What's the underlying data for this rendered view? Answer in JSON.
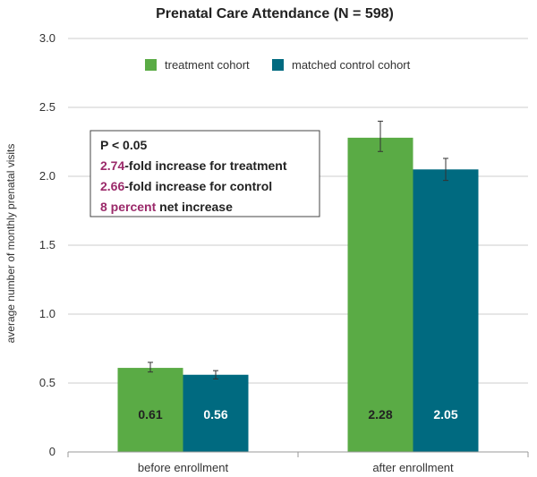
{
  "chart_data": {
    "type": "bar",
    "title": "Prenatal Care Attendance (N = 598)",
    "xlabel": "",
    "ylabel": "average number of monthly prenatal visits",
    "ylim": [
      0,
      3.0
    ],
    "yticks": [
      "0",
      "0.5",
      "1.0",
      "1.5",
      "2.0",
      "2.5",
      "3.0"
    ],
    "ytick_values": [
      0,
      0.5,
      1.0,
      1.5,
      2.0,
      2.5,
      3.0
    ],
    "grid": true,
    "legend": "top-center",
    "categories": [
      "before enrollment",
      "after enrollment"
    ],
    "series": [
      {
        "name": "treatment cohort",
        "color": "#5aab45",
        "values": [
          0.61,
          2.28
        ],
        "labels": [
          "0.61",
          "2.28"
        ],
        "label_color": "#222222",
        "error": [
          [
            0.58,
            0.65
          ],
          [
            2.18,
            2.4
          ]
        ]
      },
      {
        "name": "matched control cohort",
        "color": "#006a80",
        "values": [
          0.56,
          2.05
        ],
        "labels": [
          "0.56",
          "2.05"
        ],
        "label_color": "#ffffff",
        "error": [
          [
            0.53,
            0.59
          ],
          [
            1.97,
            2.13
          ]
        ]
      }
    ],
    "annotation": {
      "lines": [
        [
          {
            "text": "P < 0.05",
            "highlight": false
          }
        ],
        [
          {
            "text": "2.74",
            "highlight": true
          },
          {
            "text": "-fold increase for treatment",
            "highlight": false
          }
        ],
        [
          {
            "text": "2.66",
            "highlight": true
          },
          {
            "text": "-fold increase for control",
            "highlight": false
          }
        ],
        [
          {
            "text": "8 percent",
            "highlight": true
          },
          {
            "text": " net increase",
            "highlight": false
          }
        ]
      ]
    }
  }
}
